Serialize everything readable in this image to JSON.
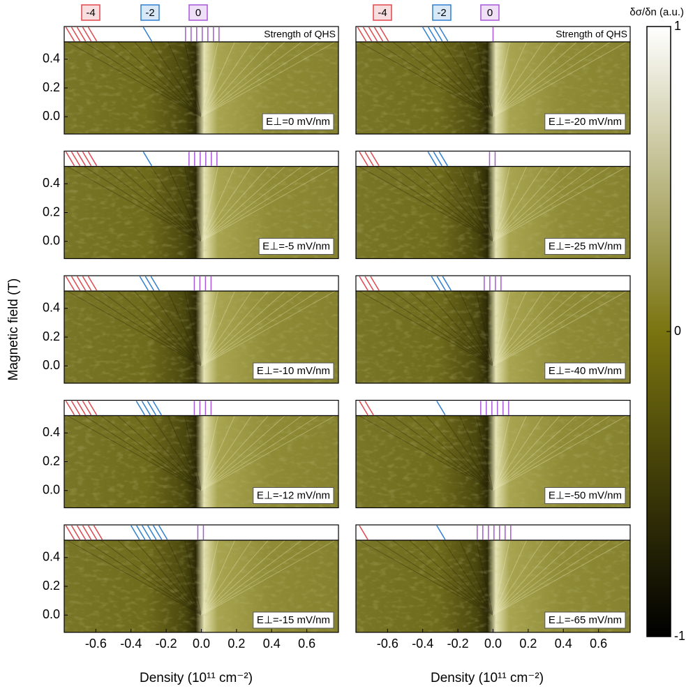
{
  "figure": {
    "xlabel": "Density (10¹¹ cm⁻²)",
    "ylabel": "Magnetic field (T)",
    "strip_label": "Strength of QHS",
    "filling_legend": [
      {
        "label": "-4",
        "color": "#e0474c"
      },
      {
        "label": "-2",
        "color": "#2f7fd0"
      },
      {
        "label": "0",
        "color": "#a855d8"
      }
    ],
    "colorbar": {
      "title": "δσ/δn (a.u.)",
      "ylim": [
        -1,
        1
      ],
      "yticks": [
        -1,
        0,
        1
      ]
    }
  },
  "chart_data": [
    {
      "type": "heatmap",
      "label": "E⊥=0 mV/nm",
      "xlim": [
        -0.78,
        0.78
      ],
      "ylim": [
        -0.12,
        0.52
      ],
      "yticks": [
        {
          "value": 0,
          "label": "0.0"
        },
        0.2,
        0.4
      ],
      "qhs_start": [
        -0.77,
        -0.33,
        -0.09
      ],
      "qhs_count": [
        5,
        1,
        7
      ]
    },
    {
      "type": "heatmap",
      "label": "E⊥=-20 mV/nm",
      "xlim": [
        -0.78,
        0.78
      ],
      "ylim": [
        -0.12,
        0.52
      ],
      "qhs_start": [
        -0.77,
        -0.4,
        0
      ],
      "qhs_count": [
        5,
        4,
        1
      ]
    },
    {
      "type": "heatmap",
      "label": "E⊥=-5 mV/nm",
      "xlim": [
        -0.78,
        0.78
      ],
      "ylim": [
        -0.12,
        0.52
      ],
      "yticks": [
        {
          "value": 0,
          "label": "0.0"
        },
        0.2,
        0.4
      ],
      "qhs_start": [
        -0.77,
        -0.33,
        -0.07
      ],
      "qhs_count": [
        5,
        1,
        6
      ]
    },
    {
      "type": "heatmap",
      "label": "E⊥=-25 mV/nm",
      "xlim": [
        -0.78,
        0.78
      ],
      "ylim": [
        -0.12,
        0.52
      ],
      "qhs_start": [
        -0.76,
        -0.37,
        -0.02
      ],
      "qhs_count": [
        3,
        3,
        2
      ]
    },
    {
      "type": "heatmap",
      "label": "E⊥=-10 mV/nm",
      "xlim": [
        -0.78,
        0.78
      ],
      "ylim": [
        -0.12,
        0.52
      ],
      "yticks": [
        {
          "value": 0,
          "label": "0.0"
        },
        0.2,
        0.4
      ],
      "qhs_start": [
        -0.77,
        -0.35,
        -0.04
      ],
      "qhs_count": [
        5,
        3,
        4
      ]
    },
    {
      "type": "heatmap",
      "label": "E⊥=-40 mV/nm",
      "xlim": [
        -0.78,
        0.78
      ],
      "ylim": [
        -0.12,
        0.52
      ],
      "qhs_start": [
        -0.76,
        -0.35,
        -0.05
      ],
      "qhs_count": [
        3,
        3,
        4
      ]
    },
    {
      "type": "heatmap",
      "label": "E⊥=-12 mV/nm",
      "xlim": [
        -0.78,
        0.78
      ],
      "ylim": [
        -0.12,
        0.52
      ],
      "yticks": [
        {
          "value": 0,
          "label": "0.0"
        },
        0.2,
        0.4
      ],
      "qhs_start": [
        -0.77,
        -0.37,
        -0.04
      ],
      "qhs_count": [
        5,
        4,
        4
      ]
    },
    {
      "type": "heatmap",
      "label": "E⊥=-50 mV/nm",
      "xlim": [
        -0.78,
        0.78
      ],
      "ylim": [
        -0.12,
        0.52
      ],
      "qhs_start": [
        -0.76,
        -0.32,
        -0.07
      ],
      "qhs_count": [
        2,
        1,
        6
      ]
    },
    {
      "type": "heatmap",
      "label": "E⊥=-15 mV/nm",
      "xlim": [
        -0.78,
        0.78
      ],
      "ylim": [
        -0.12,
        0.52
      ],
      "xticks": [
        -0.6,
        -0.4,
        -0.2,
        {
          "value": 0,
          "label": "0.0"
        },
        0.2,
        0.4,
        0.6
      ],
      "yticks": [
        {
          "value": 0,
          "label": "0.0"
        },
        0.2,
        0.4
      ],
      "qhs_start": [
        -0.77,
        -0.4,
        -0.02
      ],
      "qhs_count": [
        6,
        6,
        2
      ]
    },
    {
      "type": "heatmap",
      "label": "E⊥=-65 mV/nm",
      "xlim": [
        -0.78,
        0.78
      ],
      "ylim": [
        -0.12,
        0.52
      ],
      "xticks": [
        -0.6,
        -0.4,
        -0.2,
        {
          "value": 0,
          "label": "0.0"
        },
        0.2,
        0.4,
        0.6
      ],
      "qhs_start": [
        -0.76,
        -0.32,
        -0.09
      ],
      "qhs_count": [
        1,
        1,
        7
      ]
    }
  ]
}
